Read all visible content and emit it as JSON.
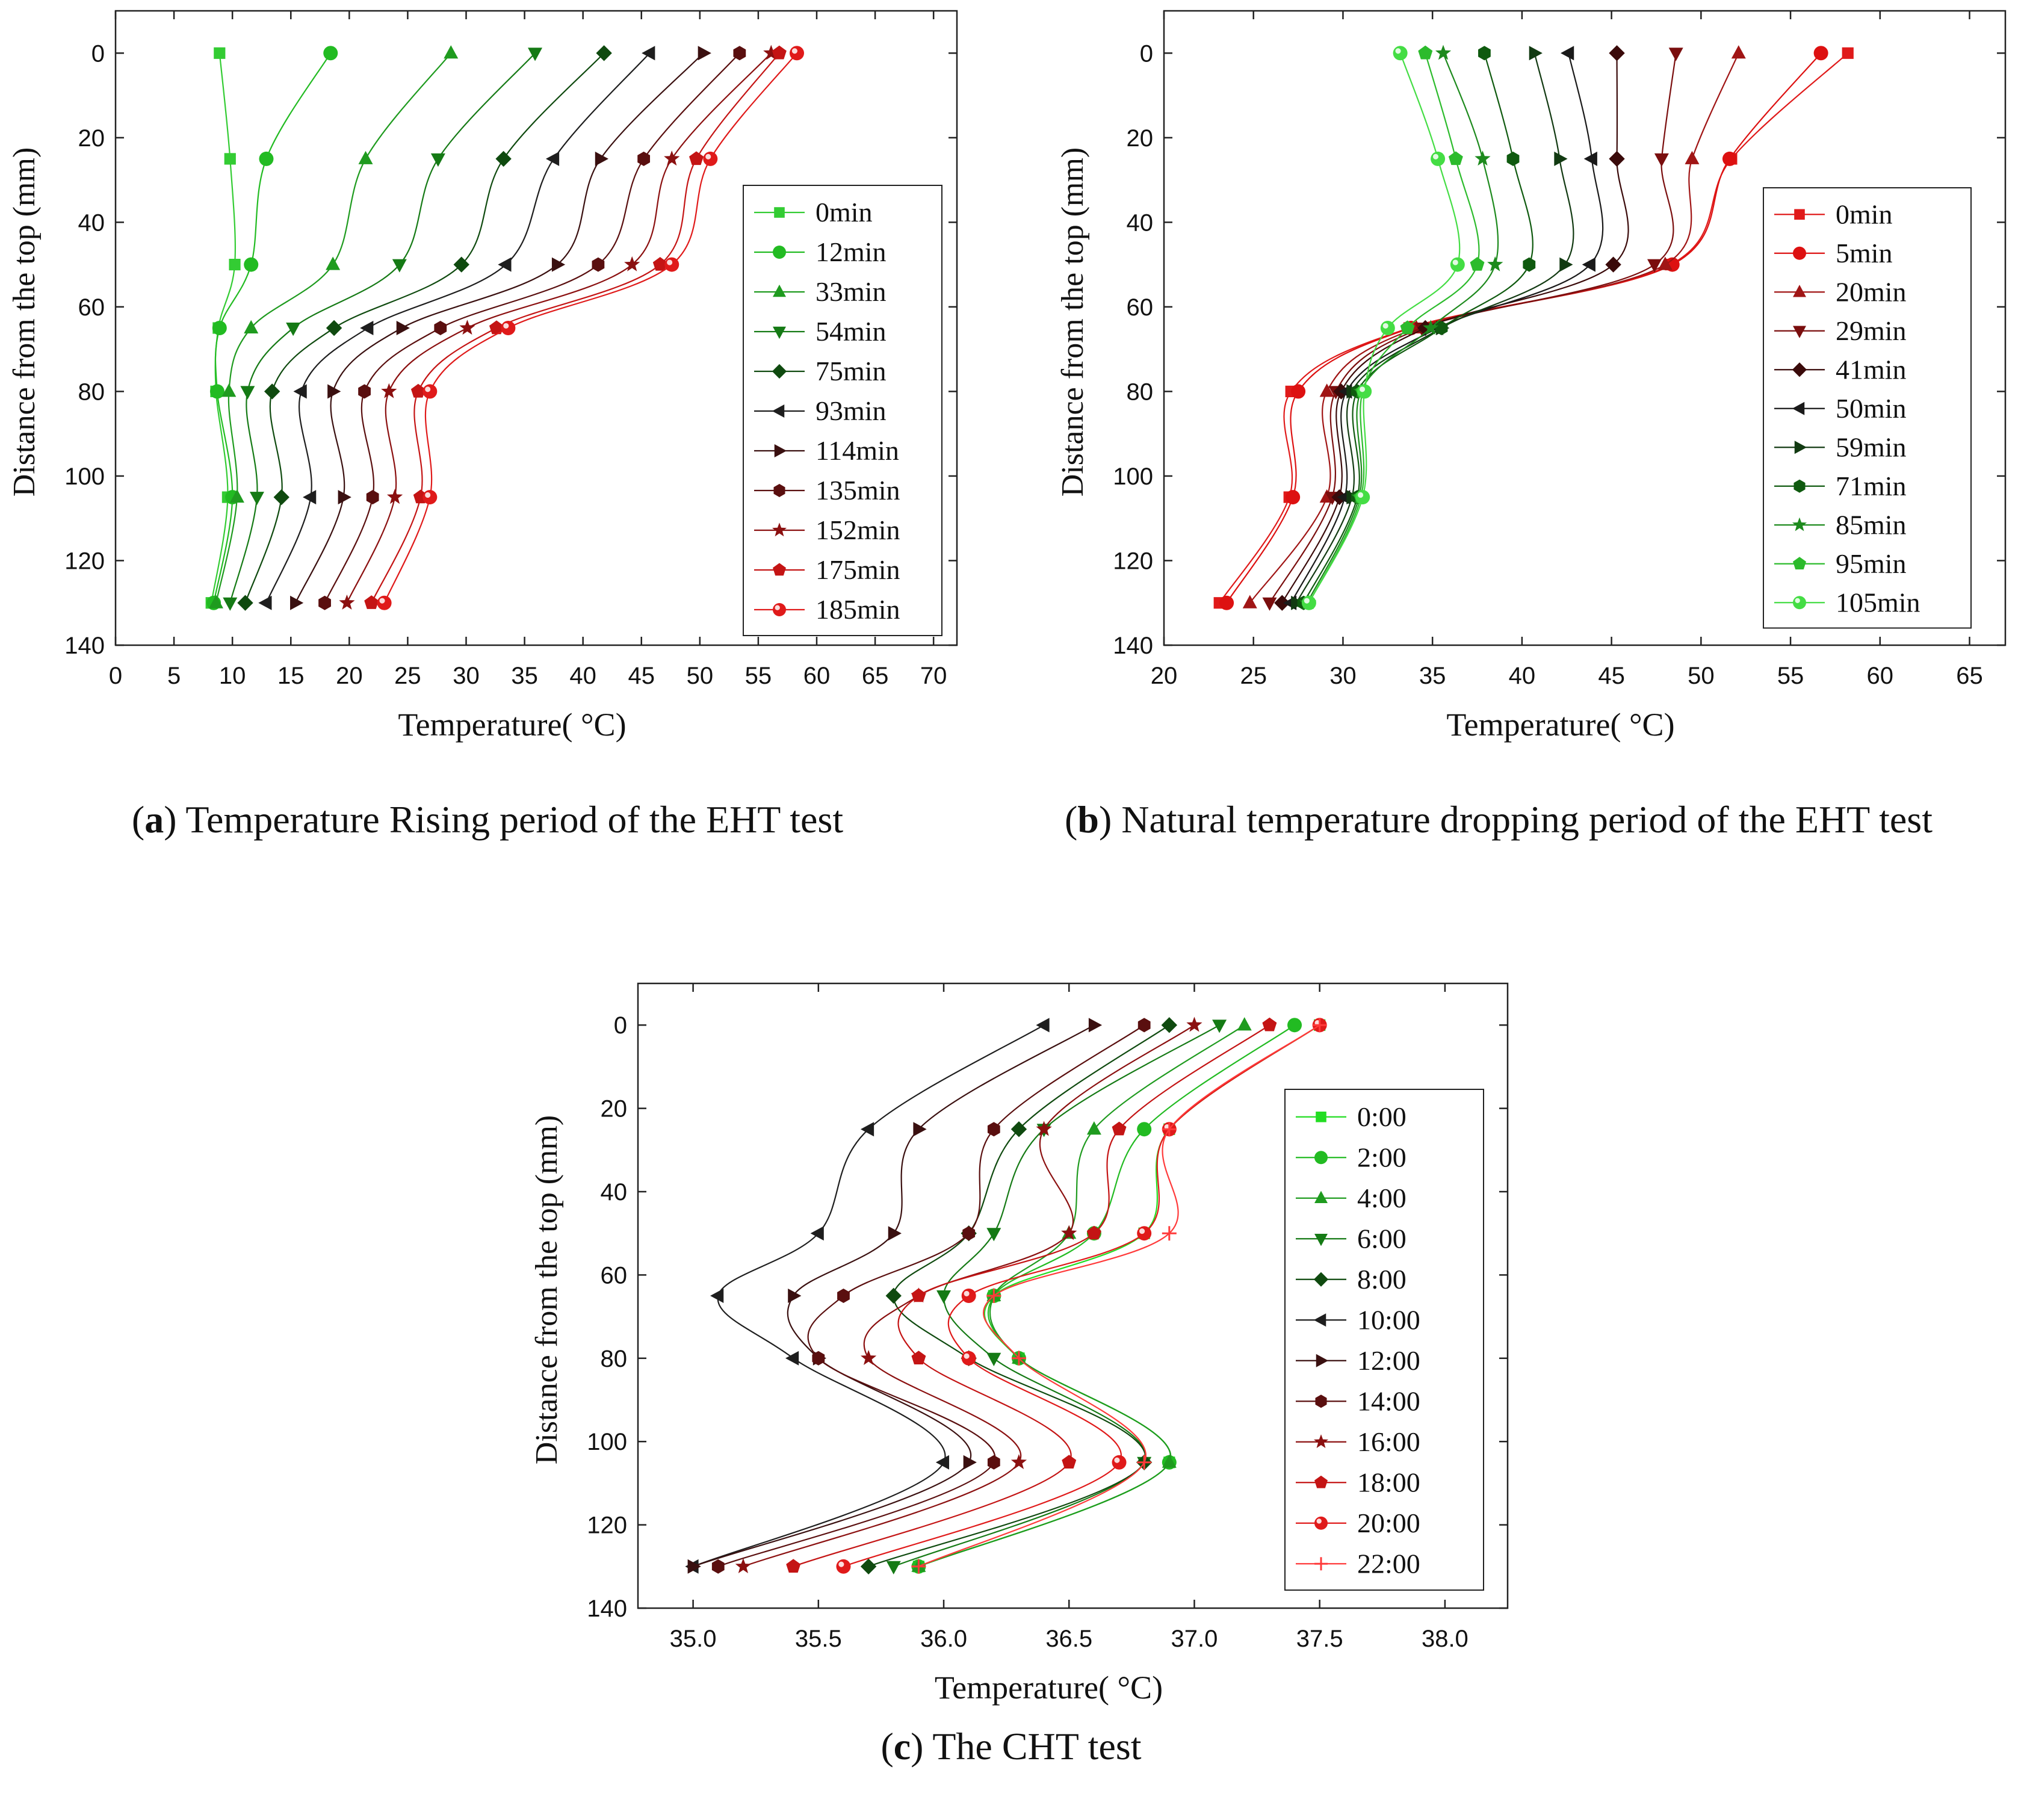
{
  "captions": [
    {
      "letter": "a",
      "text": "Temperature Rising period of the EHT test"
    },
    {
      "letter": "b",
      "text": "Natural temperature dropping period of the EHT test"
    },
    {
      "letter": "c",
      "text": "The CHT test"
    }
  ],
  "chart_data": [
    {
      "id": "a",
      "type": "line",
      "xlabel": "Temperature( °C)",
      "ylabel": "Distance from the top (mm)",
      "xlim": [
        0,
        72
      ],
      "ylim": [
        -10,
        140
      ],
      "y_inverted": true,
      "xticks": [
        0,
        5,
        10,
        15,
        20,
        25,
        30,
        35,
        40,
        45,
        50,
        55,
        60,
        65,
        70
      ],
      "yticks": [
        0,
        20,
        40,
        60,
        80,
        100,
        120,
        140
      ],
      "legend": "right-middle",
      "y": [
        0,
        25,
        50,
        65,
        80,
        105,
        130
      ],
      "series": [
        {
          "name": "0min",
          "color": "#33cc33",
          "marker": "square",
          "values": [
            8.9,
            9.8,
            10.2,
            8.8,
            8.6,
            9.6,
            8.2
          ]
        },
        {
          "name": "12min",
          "color": "#22bb22",
          "marker": "circle",
          "values": [
            18.4,
            12.9,
            11.6,
            8.9,
            8.7,
            10.0,
            8.4
          ]
        },
        {
          "name": "33min",
          "color": "#1f9b1f",
          "marker": "triangle-up",
          "values": [
            28.7,
            21.4,
            18.6,
            11.6,
            9.7,
            10.4,
            8.6
          ]
        },
        {
          "name": "54min",
          "color": "#157a15",
          "marker": "triangle-down",
          "values": [
            35.9,
            27.6,
            24.3,
            15.2,
            11.3,
            12.1,
            9.8
          ]
        },
        {
          "name": "75min",
          "color": "#0f4a0f",
          "marker": "diamond",
          "values": [
            41.8,
            33.2,
            29.6,
            18.7,
            13.4,
            14.2,
            11.1
          ]
        },
        {
          "name": "93min",
          "color": "#1e1e1e",
          "marker": "triangle-left",
          "values": [
            45.7,
            37.5,
            33.4,
            21.6,
            15.9,
            16.7,
            12.9
          ]
        },
        {
          "name": "114min",
          "color": "#3a1010",
          "marker": "triangle-right",
          "values": [
            50.3,
            41.5,
            37.8,
            24.5,
            18.6,
            19.5,
            15.4
          ]
        },
        {
          "name": "135min",
          "color": "#5a0f0f",
          "marker": "hexagon",
          "values": [
            53.4,
            45.2,
            41.3,
            27.8,
            21.3,
            22.0,
            17.9
          ]
        },
        {
          "name": "152min",
          "color": "#8b1010",
          "marker": "star",
          "values": [
            56.1,
            47.6,
            44.2,
            30.1,
            23.4,
            23.9,
            19.8
          ]
        },
        {
          "name": "175min",
          "color": "#c41414",
          "marker": "pentagon",
          "values": [
            56.8,
            49.7,
            46.6,
            32.6,
            25.9,
            26.1,
            21.9
          ]
        },
        {
          "name": "185min",
          "color": "#e01a1a",
          "marker": "circle-half",
          "values": [
            58.3,
            50.9,
            47.6,
            33.6,
            26.9,
            26.9,
            23.0
          ]
        }
      ]
    },
    {
      "id": "b",
      "type": "line",
      "xlabel": "Temperature( °C)",
      "ylabel": "Distance from the top (mm)",
      "xlim": [
        20,
        67
      ],
      "ylim": [
        -10,
        140
      ],
      "y_inverted": true,
      "xticks": [
        20,
        25,
        30,
        35,
        40,
        45,
        50,
        55,
        60,
        65
      ],
      "yticks": [
        0,
        20,
        40,
        60,
        80,
        100,
        120,
        140
      ],
      "legend": "right-middle",
      "y": [
        0,
        25,
        50,
        65,
        80,
        105,
        130
      ],
      "series": [
        {
          "name": "0min",
          "color": "#e01a1a",
          "marker": "square",
          "values": [
            58.2,
            51.7,
            48.3,
            33.7,
            27.1,
            27.0,
            23.1
          ]
        },
        {
          "name": "5min",
          "color": "#dd1111",
          "marker": "circle",
          "values": [
            56.7,
            51.6,
            48.4,
            33.8,
            27.5,
            27.2,
            23.5
          ]
        },
        {
          "name": "20min",
          "color": "#a01515",
          "marker": "triangle-up",
          "values": [
            52.1,
            49.5,
            48.0,
            34.1,
            29.1,
            29.1,
            24.8
          ]
        },
        {
          "name": "29min",
          "color": "#7a0e0e",
          "marker": "triangle-down",
          "values": [
            48.6,
            47.8,
            47.4,
            34.4,
            29.6,
            29.4,
            25.9
          ]
        },
        {
          "name": "41min",
          "color": "#3a0a0a",
          "marker": "diamond",
          "values": [
            45.3,
            45.3,
            45.1,
            34.6,
            29.9,
            29.8,
            26.6
          ]
        },
        {
          "name": "50min",
          "color": "#1a1a1a",
          "marker": "triangle-left",
          "values": [
            42.6,
            43.9,
            43.8,
            35.3,
            30.2,
            30.1,
            27.1
          ]
        },
        {
          "name": "59min",
          "color": "#123a12",
          "marker": "triangle-right",
          "values": [
            40.7,
            42.1,
            42.4,
            35.5,
            30.5,
            30.5,
            27.4
          ]
        },
        {
          "name": "71min",
          "color": "#0f5a0f",
          "marker": "hexagon",
          "values": [
            37.9,
            39.5,
            40.4,
            35.5,
            30.8,
            30.8,
            27.8
          ]
        },
        {
          "name": "85min",
          "color": "#1d8a1d",
          "marker": "star",
          "values": [
            35.6,
            37.8,
            38.5,
            34.9,
            31.0,
            30.9,
            28.0
          ]
        },
        {
          "name": "95min",
          "color": "#2cbb2c",
          "marker": "pentagon",
          "values": [
            34.6,
            36.3,
            37.5,
            33.6,
            31.1,
            31.0,
            28.1
          ]
        },
        {
          "name": "105min",
          "color": "#44dd44",
          "marker": "circle-half",
          "values": [
            33.2,
            35.3,
            36.4,
            32.5,
            31.2,
            31.1,
            28.1
          ]
        }
      ]
    },
    {
      "id": "c",
      "type": "line",
      "xlabel": "Temperature( °C)",
      "ylabel": "Distance from the top (mm)",
      "xlim": [
        34.78,
        38.25
      ],
      "ylim": [
        -10,
        140
      ],
      "y_inverted": true,
      "xticks": [
        35.0,
        35.5,
        36.0,
        36.5,
        37.0,
        37.5,
        38.0
      ],
      "yticks": [
        0,
        20,
        40,
        60,
        80,
        100,
        120,
        140
      ],
      "legend": "right-middle",
      "y": [
        0,
        25,
        50,
        65,
        80,
        105,
        130
      ],
      "series": [
        {
          "name": "0:00",
          "color": "#22dd22",
          "marker": "square",
          "values": [
            37.5,
            36.9,
            36.8,
            36.2,
            36.3,
            36.9,
            35.9
          ]
        },
        {
          "name": "2:00",
          "color": "#22bb22",
          "marker": "circle",
          "values": [
            37.4,
            36.8,
            36.6,
            36.2,
            36.3,
            36.9,
            35.9
          ]
        },
        {
          "name": "4:00",
          "color": "#1f9b1f",
          "marker": "triangle-up",
          "values": [
            37.2,
            36.6,
            36.5,
            36.2,
            36.3,
            36.9,
            35.9
          ]
        },
        {
          "name": "6:00",
          "color": "#157a15",
          "marker": "triangle-down",
          "values": [
            37.1,
            36.4,
            36.2,
            36.0,
            36.2,
            36.8,
            35.8
          ]
        },
        {
          "name": "8:00",
          "color": "#0f4a0f",
          "marker": "diamond",
          "values": [
            36.9,
            36.3,
            36.1,
            35.8,
            36.1,
            36.8,
            35.7
          ]
        },
        {
          "name": "10:00",
          "color": "#1e1e1e",
          "marker": "triangle-left",
          "values": [
            36.4,
            35.7,
            35.5,
            35.1,
            35.4,
            36.0,
            35.0
          ]
        },
        {
          "name": "12:00",
          "color": "#3a1010",
          "marker": "triangle-right",
          "values": [
            36.6,
            35.9,
            35.8,
            35.4,
            35.5,
            36.1,
            35.0
          ]
        },
        {
          "name": "14:00",
          "color": "#5a0f0f",
          "marker": "hexagon",
          "values": [
            36.8,
            36.2,
            36.1,
            35.6,
            35.5,
            36.2,
            35.1
          ]
        },
        {
          "name": "16:00",
          "color": "#8b1010",
          "marker": "star",
          "values": [
            37.0,
            36.4,
            36.5,
            35.9,
            35.7,
            36.3,
            35.2
          ]
        },
        {
          "name": "18:00",
          "color": "#c41414",
          "marker": "pentagon",
          "values": [
            37.3,
            36.7,
            36.6,
            35.9,
            35.9,
            36.5,
            35.4
          ]
        },
        {
          "name": "20:00",
          "color": "#e01a1a",
          "marker": "circle-half",
          "values": [
            37.5,
            36.9,
            36.8,
            36.1,
            36.1,
            36.7,
            35.6
          ]
        },
        {
          "name": "22:00",
          "color": "#ff3a3a",
          "marker": "plus",
          "values": [
            37.5,
            36.9,
            36.9,
            36.2,
            36.3,
            36.8,
            35.9
          ]
        }
      ]
    }
  ]
}
